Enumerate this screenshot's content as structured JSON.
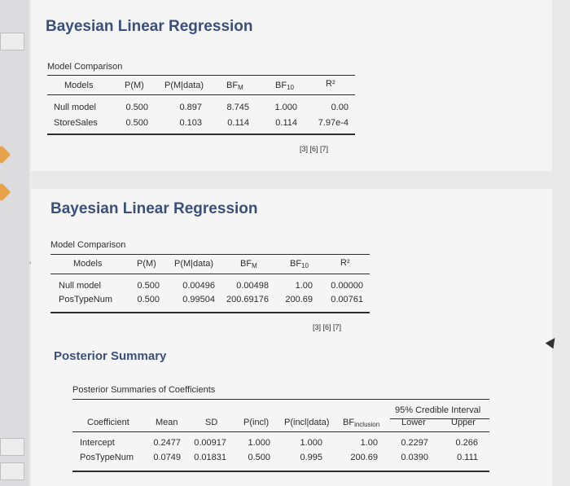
{
  "result1": {
    "title": "Bayesian Linear Regression",
    "table_title": "Model Comparison",
    "headers": {
      "models": "Models",
      "pm": "P(M)",
      "pmd": "P(M|data)",
      "bfm": "BF",
      "bfm_sub": "M",
      "bf10": "BF",
      "bf10_sub": "10",
      "r2": "R²"
    },
    "rows": [
      {
        "model": "Null model",
        "pm": "0.500",
        "pmd": "0.897",
        "bfm": "8.745",
        "bf10": "1.000",
        "r2": "0.00"
      },
      {
        "model": "StoreSales",
        "pm": "0.500",
        "pmd": "0.103",
        "bfm": "0.114",
        "bf10": "0.114",
        "r2": "7.97e-4"
      }
    ],
    "footnotes": "[3]  [6]  [7]"
  },
  "result2": {
    "title": "Bayesian Linear Regression",
    "table_title": "Model Comparison",
    "headers": {
      "models": "Models",
      "pm": "P(M)",
      "pmd": "P(M|data)",
      "bfm": "BF",
      "bfm_sub": "M",
      "bf10": "BF",
      "bf10_sub": "10",
      "r2": "R²"
    },
    "rows": [
      {
        "model": "Null model",
        "pm": "0.500",
        "pmd": "0.00496",
        "bfm": "0.00498",
        "bf10": "1.00",
        "r2": "0.00000"
      },
      {
        "model": "PosTypeNum",
        "pm": "0.500",
        "pmd": "0.99504",
        "bfm": "200.69176",
        "bf10": "200.69",
        "r2": "0.00761"
      }
    ],
    "footnotes": "[3]  [6]  [7]"
  },
  "posterior": {
    "section_title": "Posterior Summary",
    "table_title": "Posterior Summaries of Coefficients",
    "ci_header": "95% Credible Interval",
    "headers": {
      "coef": "Coefficient",
      "mean": "Mean",
      "sd": "SD",
      "pincl": "P(incl)",
      "pincld": "P(incl|data)",
      "bfincl": "BF",
      "bfincl_sub": "inclusion",
      "lower": "Lower",
      "upper": "Upper"
    },
    "rows": [
      {
        "coef": "Intercept",
        "mean": "0.2477",
        "sd": "0.00917",
        "pincl": "1.000",
        "pincld": "1.000",
        "bfincl": "1.00",
        "lower": "0.2297",
        "upper": "0.266"
      },
      {
        "coef": "PosTypeNum",
        "mean": "0.0749",
        "sd": "0.01831",
        "pincl": "0.500",
        "pincld": "0.995",
        "bfincl": "200.69",
        "lower": "0.0390",
        "upper": "0.111"
      }
    ]
  }
}
